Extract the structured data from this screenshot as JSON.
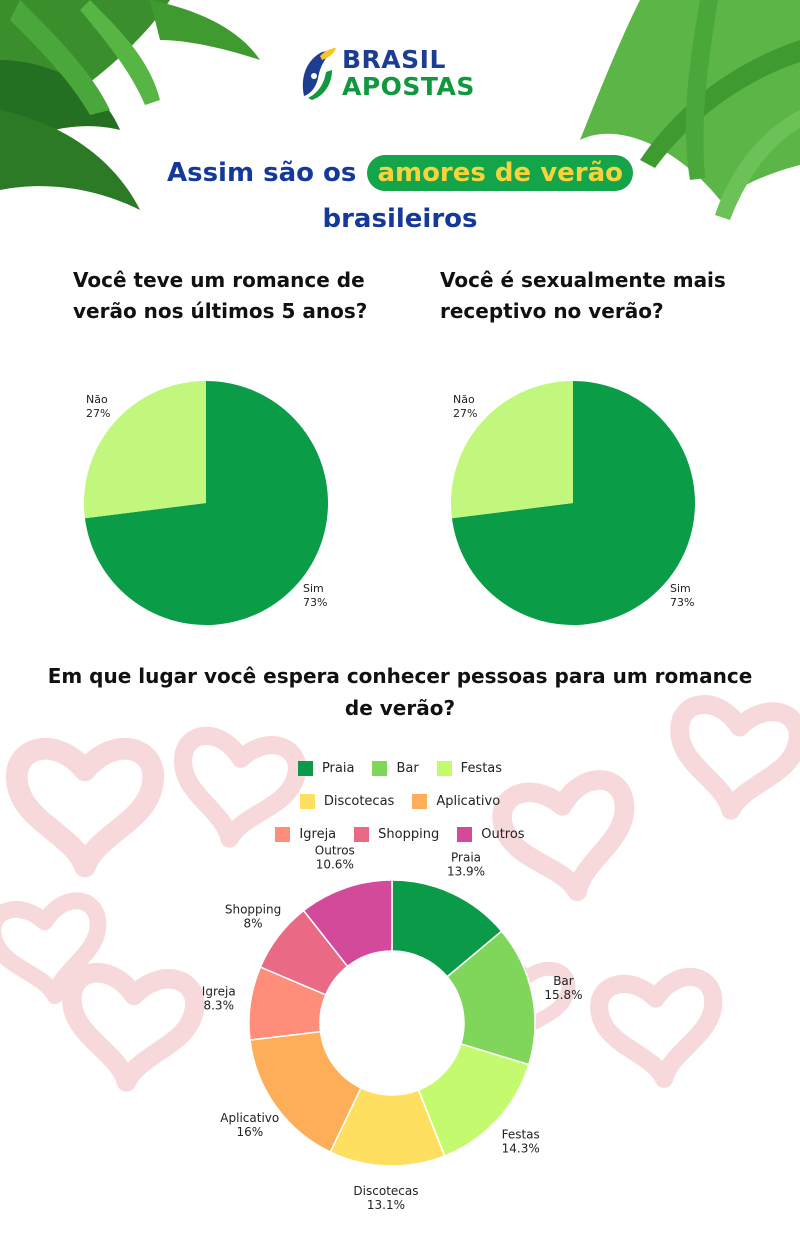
{
  "logo": {
    "line1": "BRASIL",
    "line2": "APOSTAS"
  },
  "title": {
    "before": "Assim são os",
    "highlight": "amores de verão",
    "after": "brasileiros"
  },
  "questions": {
    "q1": "Você teve um romance de verão nos últimos 5 anos?",
    "q2": "Você é sexualmente mais receptivo no verão?",
    "q3": "Em que lugar você espera conhecer pessoas para um romance de verão?"
  },
  "colors": {
    "title_blue": "#14399a",
    "highlight_bg": "#14a44a",
    "highlight_text": "#f9d33c",
    "sim": "#0a9c47",
    "nao": "#c2f77e"
  },
  "chart_data": [
    {
      "type": "pie",
      "title": "Você teve um romance de verão nos últimos 5 anos?",
      "categories": [
        "Sim",
        "Não"
      ],
      "values": [
        73,
        27
      ],
      "value_labels": [
        "73%",
        "27%"
      ],
      "colors": [
        "#0a9c47",
        "#c2f77e"
      ]
    },
    {
      "type": "pie",
      "title": "Você é sexualmente mais receptivo no verão?",
      "categories": [
        "Sim",
        "Não"
      ],
      "values": [
        73,
        27
      ],
      "value_labels": [
        "73%",
        "27%"
      ],
      "colors": [
        "#0a9c47",
        "#c2f77e"
      ]
    },
    {
      "type": "pie",
      "donut": true,
      "title": "Em que lugar você espera conhecer pessoas para um romance de verão?",
      "legend_position": "top",
      "categories": [
        "Praia",
        "Bar",
        "Festas",
        "Discotecas",
        "Aplicativo",
        "Igreja",
        "Shopping",
        "Outros"
      ],
      "values": [
        13.9,
        15.8,
        14.3,
        13.1,
        16,
        8.3,
        8,
        10.6
      ],
      "value_labels": [
        "13.9%",
        "15.8%",
        "14.3%",
        "13.1%",
        "16%",
        "8.3%",
        "8%",
        "10.6%"
      ],
      "colors": [
        "#0b9a48",
        "#7fd65a",
        "#c4fb6e",
        "#fedf5f",
        "#feae58",
        "#fe8e79",
        "#ea6a86",
        "#d24a99"
      ]
    }
  ]
}
